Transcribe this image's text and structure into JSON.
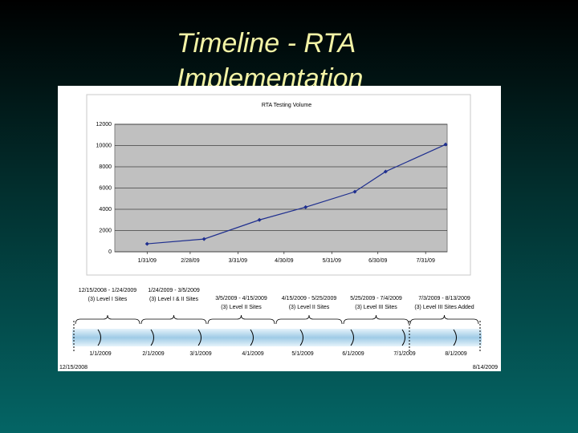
{
  "title": [
    "Timeline - RTA",
    "Implementation"
  ],
  "chart_data": {
    "type": "line",
    "title": "RTA Testing Volume",
    "x": [
      31,
      68,
      104,
      134,
      166,
      186,
      225
    ],
    "series": [
      {
        "name": "RTA Testing Volume",
        "color": "#1f2f8f",
        "values": [
          750,
          1200,
          3000,
          4200,
          5650,
          7550,
          10100
        ]
      }
    ],
    "xlim": [
      10,
      226
    ],
    "xticks": [
      {
        "value": 31,
        "label": "1/31/09"
      },
      {
        "value": 59,
        "label": "2/28/09"
      },
      {
        "value": 90,
        "label": "3/31/09"
      },
      {
        "value": 120,
        "label": "4/30/09"
      },
      {
        "value": 151,
        "label": "5/31/09"
      },
      {
        "value": 181,
        "label": "6/30/09"
      },
      {
        "value": 212,
        "label": "7/31/09"
      }
    ],
    "ylim": [
      0,
      12000
    ],
    "yticks": [
      0,
      2000,
      4000,
      6000,
      8000,
      10000,
      12000
    ],
    "grid": true
  },
  "timeline": {
    "phases": [
      {
        "dates": "12/15/2008 - 1/24/2009",
        "sites": "(3) Level I Sites"
      },
      {
        "dates": "1/24/2009 - 3/5/2009",
        "sites": "(3) Level I & II Sites"
      },
      {
        "dates": "3/5/2009 - 4/15/2009",
        "sites": "(3) Level II Sites"
      },
      {
        "dates": "4/15/2009 - 5/25/2009",
        "sites": "(3) Level II Sites"
      },
      {
        "dates": "5/25/2009 - 7/4/2009",
        "sites": "(3) Level III Sites"
      },
      {
        "dates": "7/3/2009 - 8/13/2009",
        "sites": "(3) Level III Sites Added"
      }
    ],
    "months": [
      "1/1/2009",
      "2/1/2009",
      "3/1/2009",
      "4/1/2009",
      "5/1/2009",
      "6/1/2009",
      "7/1/2009",
      "8/1/2009"
    ],
    "start": "12/15/2008",
    "end": "8/14/2009"
  }
}
